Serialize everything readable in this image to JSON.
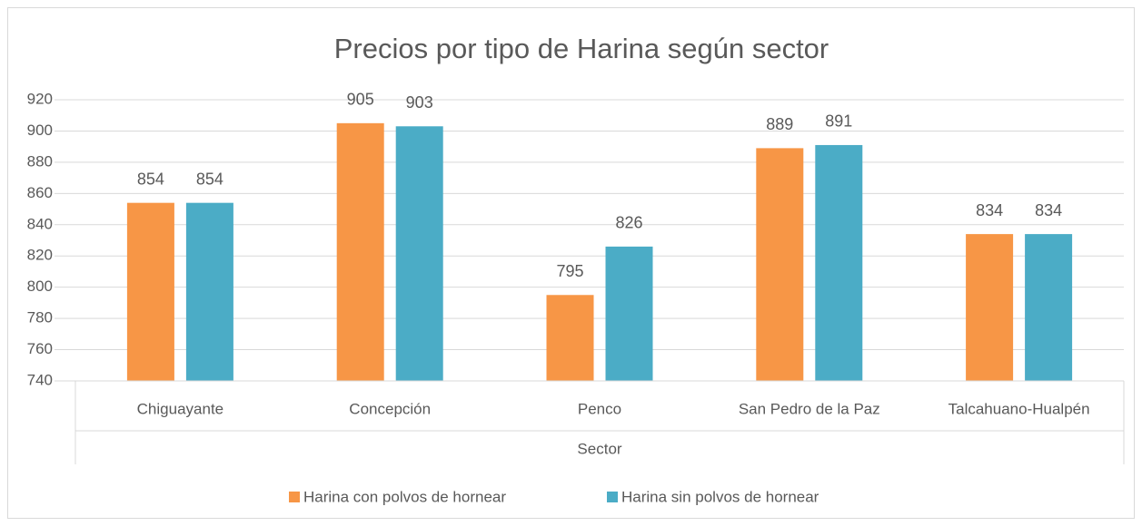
{
  "chart_data": {
    "type": "bar",
    "title": "Precios por tipo de Harina según sector",
    "xlabel": "Sector",
    "categories": [
      "Chiguayante",
      "Concepción",
      "Penco",
      "San Pedro de la Paz",
      "Talcahuano-Hualpén"
    ],
    "series": [
      {
        "name": "Harina con polvos de hornear",
        "color": "#F79646",
        "values": [
          854,
          905,
          795,
          889,
          834
        ]
      },
      {
        "name": "Harina sin polvos de hornear",
        "color": "#4BACC6",
        "values": [
          854,
          903,
          826,
          891,
          834
        ]
      }
    ],
    "ylim": [
      740,
      920
    ],
    "yticks": [
      740,
      760,
      780,
      800,
      820,
      840,
      860,
      880,
      900,
      920
    ],
    "grid": true,
    "legend": "bottom"
  }
}
